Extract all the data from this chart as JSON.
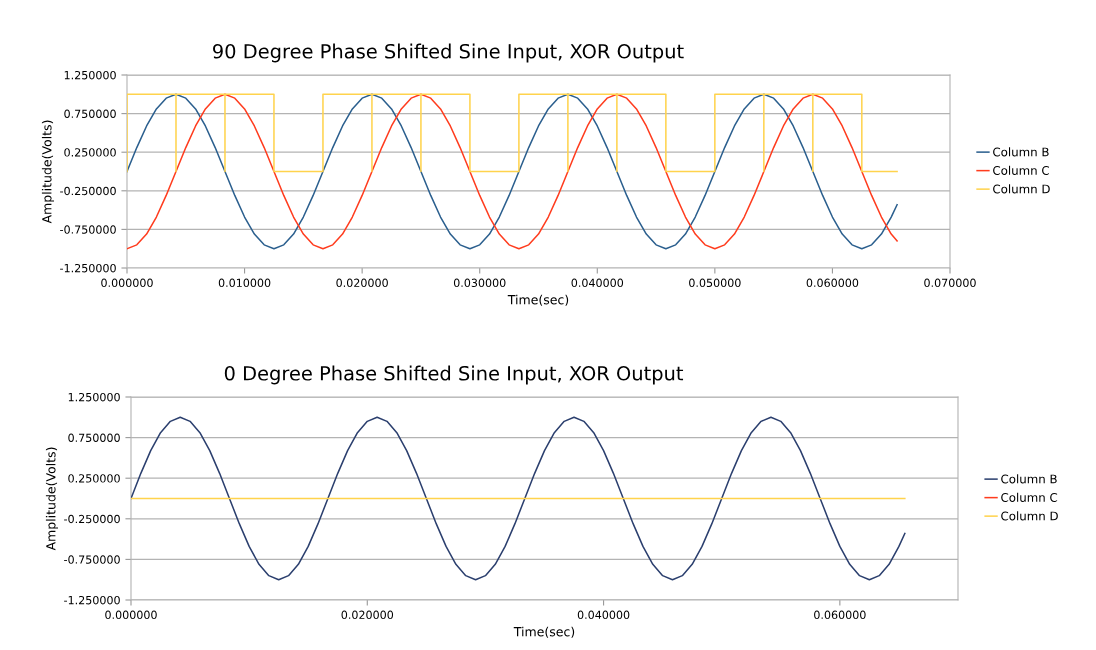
{
  "chart_data": [
    {
      "type": "line",
      "title": "90 Degree Phase Shifted Sine Input, XOR Output",
      "xlabel": "Time(sec)",
      "ylabel": "Amplitude(Volts)",
      "x": [
        0,
        0.000833,
        0.001667,
        0.0025,
        0.003333,
        0.004167,
        0.005,
        0.005833,
        0.006667,
        0.0075,
        0.008333,
        0.009167,
        0.01,
        0.010833,
        0.011667,
        0.0125,
        0.013333,
        0.014167,
        0.015,
        0.015833,
        0.016667,
        0.0175,
        0.018333,
        0.019167,
        0.02,
        0.020833,
        0.021667,
        0.0225,
        0.023333,
        0.024167,
        0.025,
        0.025833,
        0.026667,
        0.0275,
        0.028333,
        0.029167,
        0.03,
        0.030833,
        0.031667,
        0.0325,
        0.033333,
        0.034167,
        0.035,
        0.035833,
        0.036667,
        0.0375,
        0.038333,
        0.039167,
        0.04,
        0.040833,
        0.041667,
        0.0425,
        0.043333,
        0.044167,
        0.045,
        0.045833,
        0.046667,
        0.0475,
        0.048333,
        0.049167,
        0.05,
        0.050833,
        0.051667,
        0.0525,
        0.053333,
        0.054167,
        0.055,
        0.055833,
        0.056667,
        0.0575,
        0.058333,
        0.059167,
        0.06,
        0.060833,
        0.061667,
        0.0625,
        0.063333,
        0.064167,
        0.065,
        0.0655
      ],
      "series": [
        {
          "name": "Column B",
          "color": "#2b5f8e",
          "values": [
            0,
            0.31,
            0.59,
            0.81,
            0.95,
            1,
            0.95,
            0.81,
            0.59,
            0.31,
            0,
            -0.31,
            -0.59,
            -0.81,
            -0.95,
            -1,
            -0.95,
            -0.81,
            -0.59,
            -0.31,
            0,
            0.31,
            0.59,
            0.81,
            0.95,
            1,
            0.95,
            0.81,
            0.59,
            0.31,
            0,
            -0.31,
            -0.59,
            -0.81,
            -0.95,
            -1,
            -0.95,
            -0.81,
            -0.59,
            -0.31,
            0,
            0.31,
            0.59,
            0.81,
            0.95,
            1,
            0.95,
            0.81,
            0.59,
            0.31,
            0,
            -0.31,
            -0.59,
            -0.81,
            -0.95,
            -1,
            -0.95,
            -0.81,
            -0.59,
            -0.31,
            0,
            0.31,
            0.59,
            0.81,
            0.95,
            1,
            0.95,
            0.81,
            0.59,
            0.31,
            0,
            -0.31,
            -0.59,
            -0.81,
            -0.95,
            -1,
            -0.95,
            -0.81,
            -0.59,
            -0.43
          ]
        },
        {
          "name": "Column C",
          "color": "#ff3c1e",
          "values": [
            -1,
            -0.95,
            -0.81,
            -0.59,
            -0.31,
            0,
            0.31,
            0.59,
            0.81,
            0.95,
            1,
            0.95,
            0.81,
            0.59,
            0.31,
            0,
            -0.31,
            -0.59,
            -0.81,
            -0.95,
            -1,
            -0.95,
            -0.81,
            -0.59,
            -0.31,
            0,
            0.31,
            0.59,
            0.81,
            0.95,
            1,
            0.95,
            0.81,
            0.59,
            0.31,
            0,
            -0.31,
            -0.59,
            -0.81,
            -0.95,
            -1,
            -0.95,
            -0.81,
            -0.59,
            -0.31,
            0,
            0.31,
            0.59,
            0.81,
            0.95,
            1,
            0.95,
            0.81,
            0.59,
            0.31,
            0,
            -0.31,
            -0.59,
            -0.81,
            -0.95,
            -1,
            -0.95,
            -0.81,
            -0.59,
            -0.31,
            0,
            0.31,
            0.59,
            0.81,
            0.95,
            1,
            0.95,
            0.81,
            0.59,
            0.31,
            0,
            -0.31,
            -0.59,
            -0.81,
            -0.9
          ]
        },
        {
          "name": "Column D",
          "color": "#ffd34d",
          "x": [
            0,
            0,
            0.004167,
            0.004167,
            0.004167,
            0.008333,
            0.008333,
            0.008333,
            0.0125,
            0.0125,
            0.016667,
            0.016667,
            0.020833,
            0.020833,
            0.020833,
            0.025,
            0.025,
            0.025,
            0.029167,
            0.029167,
            0.033333,
            0.033333,
            0.0375,
            0.0375,
            0.0375,
            0.041667,
            0.041667,
            0.041667,
            0.045833,
            0.045833,
            0.05,
            0.05,
            0.054167,
            0.054167,
            0.054167,
            0.058333,
            0.058333,
            0.058333,
            0.0625,
            0.0625,
            0.0655
          ],
          "values": [
            0,
            1,
            1,
            0,
            1,
            1,
            0,
            1,
            1,
            0,
            0,
            1,
            1,
            0,
            1,
            1,
            0,
            1,
            1,
            0,
            0,
            1,
            1,
            0,
            1,
            1,
            0,
            1,
            1,
            0,
            0,
            1,
            1,
            0,
            1,
            1,
            0,
            1,
            1,
            0,
            0
          ]
        }
      ],
      "xlim": [
        0,
        0.07
      ],
      "xticks": [
        {
          "value": 0,
          "label": "0.000000"
        },
        {
          "value": 0.01,
          "label": "0.010000"
        },
        {
          "value": 0.02,
          "label": "0.020000"
        },
        {
          "value": 0.03,
          "label": "0.030000"
        },
        {
          "value": 0.04,
          "label": "0.040000"
        },
        {
          "value": 0.05,
          "label": "0.050000"
        },
        {
          "value": 0.06,
          "label": "0.060000"
        },
        {
          "value": 0.07,
          "label": "0.070000"
        }
      ],
      "ylim": [
        -1.25,
        1.25
      ],
      "yticks": [
        {
          "value": -1.25,
          "label": "-1.250000"
        },
        {
          "value": -0.75,
          "label": "-0.750000"
        },
        {
          "value": -0.25,
          "label": "-0.250000"
        },
        {
          "value": 0.25,
          "label": "0.250000"
        },
        {
          "value": 0.75,
          "label": "0.750000"
        },
        {
          "value": 1.25,
          "label": "1.250000"
        }
      ],
      "grid": "y",
      "legend": "right",
      "marker": "none",
      "line_style": "solid"
    },
    {
      "type": "line",
      "title": "0 Degree Phase Shifted Sine Input, XOR Output",
      "xlabel": "Time(sec)",
      "ylabel": "Amplitude(Volts)",
      "x": [
        0,
        0.000833,
        0.001667,
        0.0025,
        0.003333,
        0.004167,
        0.005,
        0.005833,
        0.006667,
        0.0075,
        0.008333,
        0.009167,
        0.01,
        0.010833,
        0.011667,
        0.0125,
        0.013333,
        0.014167,
        0.015,
        0.015833,
        0.016667,
        0.0175,
        0.018333,
        0.019167,
        0.02,
        0.020833,
        0.021667,
        0.0225,
        0.023333,
        0.024167,
        0.025,
        0.025833,
        0.026667,
        0.0275,
        0.028333,
        0.029167,
        0.03,
        0.030833,
        0.031667,
        0.0325,
        0.033333,
        0.034167,
        0.035,
        0.035833,
        0.036667,
        0.0375,
        0.038333,
        0.039167,
        0.04,
        0.040833,
        0.041667,
        0.0425,
        0.043333,
        0.044167,
        0.045,
        0.045833,
        0.046667,
        0.0475,
        0.048333,
        0.049167,
        0.05,
        0.050833,
        0.051667,
        0.0525,
        0.053333,
        0.054167,
        0.055,
        0.055833,
        0.056667,
        0.0575,
        0.058333,
        0.059167,
        0.06,
        0.060833,
        0.061667,
        0.0625,
        0.063333,
        0.064167,
        0.065,
        0.0655
      ],
      "series": [
        {
          "name": "Column B",
          "color": "#2b3f6e",
          "values": [
            0,
            0.31,
            0.59,
            0.81,
            0.95,
            1,
            0.95,
            0.81,
            0.59,
            0.31,
            0,
            -0.31,
            -0.59,
            -0.81,
            -0.95,
            -1,
            -0.95,
            -0.81,
            -0.59,
            -0.31,
            0,
            0.31,
            0.59,
            0.81,
            0.95,
            1,
            0.95,
            0.81,
            0.59,
            0.31,
            0,
            -0.31,
            -0.59,
            -0.81,
            -0.95,
            -1,
            -0.95,
            -0.81,
            -0.59,
            -0.31,
            0,
            0.31,
            0.59,
            0.81,
            0.95,
            1,
            0.95,
            0.81,
            0.59,
            0.31,
            0,
            -0.31,
            -0.59,
            -0.81,
            -0.95,
            -1,
            -0.95,
            -0.81,
            -0.59,
            -0.31,
            0,
            0.31,
            0.59,
            0.81,
            0.95,
            1,
            0.95,
            0.81,
            0.59,
            0.31,
            0,
            -0.31,
            -0.59,
            -0.81,
            -0.95,
            -1,
            -0.95,
            -0.81,
            -0.59,
            -0.43
          ]
        },
        {
          "name": "Column C",
          "color": "#ff3c1e",
          "values": [
            null,
            null,
            null,
            null,
            null,
            null,
            null,
            null,
            null,
            null,
            null,
            null,
            null,
            null,
            null,
            null,
            null,
            null,
            null,
            null,
            null,
            null,
            null,
            null,
            null,
            null,
            null,
            null,
            null,
            null,
            null,
            null,
            null,
            null,
            null,
            null,
            null,
            null,
            null,
            null,
            null,
            null,
            null,
            null,
            null,
            null,
            null,
            null,
            null,
            null,
            null,
            null,
            null,
            null,
            null,
            null,
            null,
            null,
            null,
            null,
            null,
            null,
            null,
            null,
            null,
            null,
            null,
            null,
            null,
            null,
            null,
            null,
            null,
            null,
            null,
            null,
            null,
            null,
            null,
            null
          ]
        },
        {
          "name": "Column D",
          "color": "#ffd34d",
          "x": [
            0,
            0.0655
          ],
          "values": [
            0,
            0
          ]
        }
      ],
      "xlim": [
        0,
        0.07
      ],
      "xticks": [
        {
          "value": 0,
          "label": "0.000000"
        },
        {
          "value": 0.02,
          "label": "0.020000"
        },
        {
          "value": 0.04,
          "label": "0.040000"
        },
        {
          "value": 0.06,
          "label": "0.060000"
        }
      ],
      "ylim": [
        -1.25,
        1.25
      ],
      "yticks": [
        {
          "value": -1.25,
          "label": "-1.250000"
        },
        {
          "value": -0.75,
          "label": "-0.750000"
        },
        {
          "value": -0.25,
          "label": "-0.250000"
        },
        {
          "value": 0.25,
          "label": "0.250000"
        },
        {
          "value": 0.75,
          "label": "0.750000"
        },
        {
          "value": 1.25,
          "label": "1.250000"
        }
      ],
      "grid": "y",
      "legend": "right",
      "marker": "none",
      "line_style": "solid"
    }
  ]
}
